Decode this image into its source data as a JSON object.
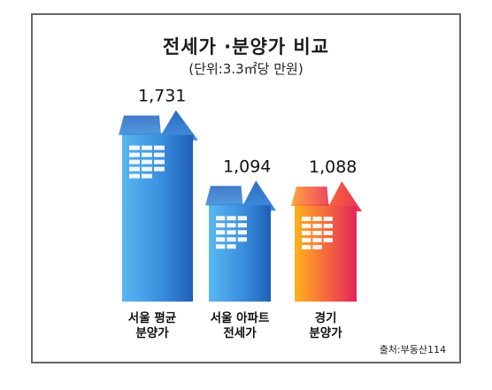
{
  "chart_data": {
    "type": "bar",
    "title": "전세가 ·분양가 비교",
    "subtitle": "(단위:3.3㎡당 만원)",
    "categories": [
      [
        "서울 평균",
        "분양가"
      ],
      [
        "서울 아파트",
        "전세가"
      ],
      [
        "경기",
        "분양가"
      ]
    ],
    "values": [
      1731,
      1094,
      1088
    ],
    "value_labels": [
      "1,731",
      "1,094",
      "1,088"
    ],
    "colors": [
      "#3a7fd0",
      "#3a7fd0",
      "#f26a3a"
    ],
    "ylim": [
      0,
      1800
    ],
    "grid": false,
    "legend": "none"
  },
  "source": "출처:부동산114"
}
